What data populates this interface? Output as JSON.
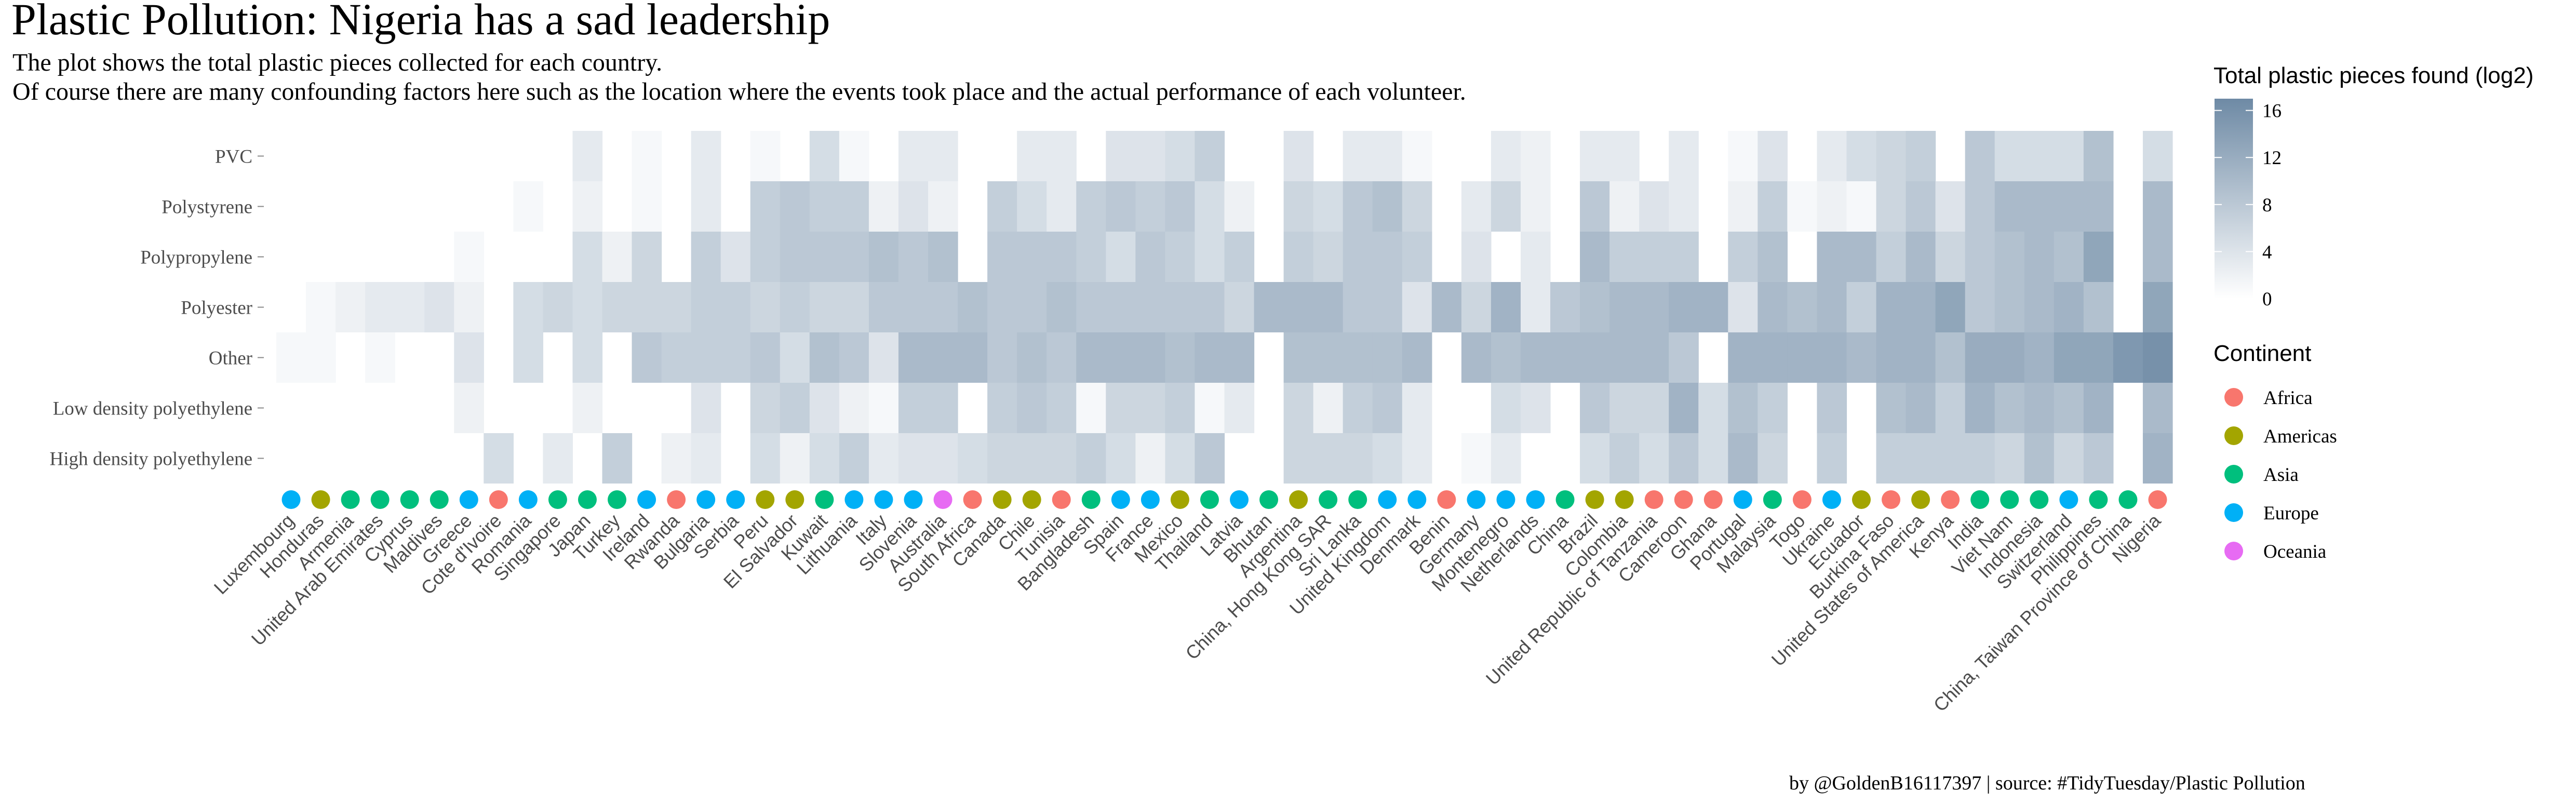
{
  "chart_data": {
    "type": "heatmap",
    "title": "Plastic Pollution: Nigeria has a sad leadership",
    "subtitle_line1": "The plot shows the total plastic pieces collected for each country.",
    "subtitle_line2": "Of course there are many confounding factors here such as the location where the events took place and the actual performance of each volunteer.",
    "caption": "by @GoldenB16117397 | source: #TidyTuesday/Plastic Pollution",
    "color_legend": {
      "title": "Total plastic pieces found (log2)",
      "ticks": [
        0,
        4,
        8,
        12,
        16
      ],
      "domain": [
        0,
        17
      ],
      "color_low": "#ffffff",
      "color_high": "#6e8aa5"
    },
    "continent_legend": {
      "title": "Continent",
      "items": [
        {
          "name": "Africa",
          "color": "#F8766D"
        },
        {
          "name": "Americas",
          "color": "#A3A500"
        },
        {
          "name": "Asia",
          "color": "#00BF7D"
        },
        {
          "name": "Europe",
          "color": "#00B0F6"
        },
        {
          "name": "Oceania",
          "color": "#E76BF3"
        }
      ]
    },
    "rows": [
      "PVC",
      "Polystyrene",
      "Polypropylene",
      "Polyester",
      "Other",
      "Low density polyethylene",
      "High density polyethylene"
    ],
    "countries": [
      {
        "name": "Luxembourg",
        "continent": "Europe",
        "values": [
          0,
          0,
          0,
          0,
          1,
          0,
          0
        ]
      },
      {
        "name": "Honduras",
        "continent": "Americas",
        "values": [
          0,
          0,
          0,
          1,
          1,
          0,
          0
        ]
      },
      {
        "name": "Armenia",
        "continent": "Asia",
        "values": [
          0,
          0,
          0,
          2,
          0,
          0,
          0
        ]
      },
      {
        "name": "United Arab Emirates",
        "continent": "Asia",
        "values": [
          0,
          0,
          0,
          3,
          1,
          0,
          0
        ]
      },
      {
        "name": "Cyprus",
        "continent": "Asia",
        "values": [
          0,
          0,
          0,
          3,
          0,
          0,
          0
        ]
      },
      {
        "name": "Maldives",
        "continent": "Asia",
        "values": [
          0,
          0,
          0,
          4,
          0,
          0,
          0
        ]
      },
      {
        "name": "Greece",
        "continent": "Europe",
        "values": [
          0,
          0,
          1,
          2,
          4,
          2,
          0
        ]
      },
      {
        "name": "Cote d'Ivoire",
        "continent": "Africa",
        "values": [
          0,
          0,
          0,
          0,
          0,
          0,
          5
        ]
      },
      {
        "name": "Romania",
        "continent": "Europe",
        "values": [
          0,
          1,
          0,
          5,
          5,
          0,
          0
        ]
      },
      {
        "name": "Singapore",
        "continent": "Asia",
        "values": [
          0,
          0,
          0,
          6,
          0,
          0,
          3
        ]
      },
      {
        "name": "Japan",
        "continent": "Asia",
        "values": [
          3,
          2,
          5,
          5,
          5,
          2,
          0
        ]
      },
      {
        "name": "Turkey",
        "continent": "Asia",
        "values": [
          0,
          0,
          2,
          6,
          0,
          0,
          7
        ]
      },
      {
        "name": "Ireland",
        "continent": "Europe",
        "values": [
          1,
          1,
          6,
          6,
          8,
          0,
          0
        ]
      },
      {
        "name": "Rwanda",
        "continent": "Africa",
        "values": [
          0,
          0,
          0,
          6,
          7,
          0,
          2
        ]
      },
      {
        "name": "Bulgaria",
        "continent": "Europe",
        "values": [
          3,
          3,
          7,
          7,
          7,
          4,
          3
        ]
      },
      {
        "name": "Serbia",
        "continent": "Europe",
        "values": [
          0,
          0,
          4,
          7,
          7,
          0,
          0
        ]
      },
      {
        "name": "Peru",
        "continent": "Americas",
        "values": [
          1,
          7,
          7,
          6,
          8,
          6,
          5
        ]
      },
      {
        "name": "El Salvador",
        "continent": "Americas",
        "values": [
          0,
          8,
          8,
          7,
          5,
          7,
          2
        ]
      },
      {
        "name": "Kuwait",
        "continent": "Asia",
        "values": [
          5,
          7,
          8,
          6,
          9,
          4,
          5
        ]
      },
      {
        "name": "Lithuania",
        "continent": "Europe",
        "values": [
          1,
          7,
          8,
          6,
          8,
          2,
          7
        ]
      },
      {
        "name": "Italy",
        "continent": "Europe",
        "values": [
          0,
          2,
          9,
          8,
          4,
          1,
          3
        ]
      },
      {
        "name": "Slovenia",
        "continent": "Europe",
        "values": [
          3,
          4,
          8,
          8,
          10,
          7,
          4
        ]
      },
      {
        "name": "Australia",
        "continent": "Oceania",
        "values": [
          3,
          2,
          9,
          8,
          10,
          7,
          4
        ]
      },
      {
        "name": "South Africa",
        "continent": "Africa",
        "values": [
          0,
          0,
          0,
          9,
          10,
          0,
          5
        ]
      },
      {
        "name": "Canada",
        "continent": "Americas",
        "values": [
          0,
          7,
          8,
          8,
          8,
          7,
          6
        ]
      },
      {
        "name": "Chile",
        "continent": "Americas",
        "values": [
          3,
          5,
          8,
          8,
          9,
          8,
          6
        ]
      },
      {
        "name": "Tunisia",
        "continent": "Africa",
        "values": [
          3,
          3,
          8,
          9,
          8,
          7,
          6
        ]
      },
      {
        "name": "Bangladesh",
        "continent": "Asia",
        "values": [
          0,
          7,
          7,
          8,
          10,
          1,
          7
        ]
      },
      {
        "name": "Spain",
        "continent": "Europe",
        "values": [
          4,
          8,
          5,
          8,
          10,
          6,
          5
        ]
      },
      {
        "name": "France",
        "continent": "Europe",
        "values": [
          4,
          7,
          8,
          8,
          10,
          6,
          2
        ]
      },
      {
        "name": "Mexico",
        "continent": "Americas",
        "values": [
          5,
          8,
          7,
          8,
          9,
          7,
          5
        ]
      },
      {
        "name": "Thailand",
        "continent": "Asia",
        "values": [
          7,
          5,
          5,
          8,
          10,
          1,
          8
        ]
      },
      {
        "name": "Latvia",
        "continent": "Europe",
        "values": [
          0,
          2,
          7,
          6,
          10,
          3,
          0
        ]
      },
      {
        "name": "Bhutan",
        "continent": "Asia",
        "values": [
          0,
          0,
          0,
          10,
          0,
          0,
          0
        ]
      },
      {
        "name": "Argentina",
        "continent": "Americas",
        "values": [
          4,
          6,
          7,
          10,
          9,
          6,
          6
        ]
      },
      {
        "name": "China, Hong Kong SAR",
        "continent": "Asia",
        "values": [
          0,
          5,
          6,
          10,
          9,
          2,
          6
        ]
      },
      {
        "name": "Sri Lanka",
        "continent": "Asia",
        "values": [
          3,
          8,
          8,
          8,
          9,
          7,
          6
        ]
      },
      {
        "name": "United Kingdom",
        "continent": "Europe",
        "values": [
          3,
          9,
          8,
          8,
          9,
          8,
          5
        ]
      },
      {
        "name": "Denmark",
        "continent": "Europe",
        "values": [
          1,
          6,
          7,
          4,
          10,
          3,
          3
        ]
      },
      {
        "name": "Benin",
        "continent": "Africa",
        "values": [
          0,
          0,
          0,
          10,
          0,
          0,
          0
        ]
      },
      {
        "name": "Germany",
        "continent": "Europe",
        "values": [
          0,
          3,
          4,
          6,
          10,
          0,
          1
        ]
      },
      {
        "name": "Montenegro",
        "continent": "Europe",
        "values": [
          3,
          6,
          0,
          11,
          9,
          5,
          3
        ]
      },
      {
        "name": "Netherlands",
        "continent": "Europe",
        "values": [
          2,
          2,
          3,
          3,
          10,
          4,
          0
        ]
      },
      {
        "name": "China",
        "continent": "Asia",
        "values": [
          0,
          0,
          0,
          8,
          10,
          0,
          0
        ]
      },
      {
        "name": "Brazil",
        "continent": "Americas",
        "values": [
          3,
          8,
          10,
          9,
          10,
          8,
          5
        ]
      },
      {
        "name": "Colombia",
        "continent": "Americas",
        "values": [
          3,
          2,
          7,
          10,
          10,
          6,
          7
        ]
      },
      {
        "name": "United Republic of Tanzania",
        "continent": "Africa",
        "values": [
          0,
          4,
          7,
          10,
          10,
          6,
          5
        ]
      },
      {
        "name": "Cameroon",
        "continent": "Africa",
        "values": [
          3,
          3,
          7,
          11,
          8,
          11,
          8
        ]
      },
      {
        "name": "Ghana",
        "continent": "Africa",
        "values": [
          0,
          0,
          0,
          11,
          0,
          5,
          5
        ]
      },
      {
        "name": "Portugal",
        "continent": "Europe",
        "values": [
          1,
          2,
          7,
          4,
          11,
          9,
          10
        ]
      },
      {
        "name": "Malaysia",
        "continent": "Asia",
        "values": [
          4,
          7,
          9,
          10,
          11,
          7,
          6
        ]
      },
      {
        "name": "Togo",
        "continent": "Africa",
        "values": [
          0,
          1,
          0,
          9,
          11,
          0,
          0
        ]
      },
      {
        "name": "Ukraine",
        "continent": "Europe",
        "values": [
          3,
          2,
          10,
          10,
          11,
          8,
          7
        ]
      },
      {
        "name": "Ecuador",
        "continent": "Americas",
        "values": [
          5,
          1,
          10,
          7,
          10,
          0,
          0
        ]
      },
      {
        "name": "Burkina Faso",
        "continent": "Africa",
        "values": [
          6,
          6,
          7,
          11,
          11,
          9,
          7
        ]
      },
      {
        "name": "United States of America",
        "continent": "Americas",
        "values": [
          7,
          8,
          10,
          11,
          11,
          10,
          7
        ]
      },
      {
        "name": "Kenya",
        "continent": "Africa",
        "values": [
          0,
          4,
          6,
          13,
          9,
          7,
          7
        ]
      },
      {
        "name": "India",
        "continent": "Asia",
        "values": [
          8,
          8,
          8,
          8,
          12,
          11,
          7
        ]
      },
      {
        "name": "Viet Nam",
        "continent": "Asia",
        "values": [
          5,
          10,
          9,
          9,
          12,
          9,
          6
        ]
      },
      {
        "name": "Indonesia",
        "continent": "Asia",
        "values": [
          5,
          10,
          10,
          10,
          11,
          10,
          9
        ]
      },
      {
        "name": "Switzerland",
        "continent": "Europe",
        "values": [
          5,
          10,
          9,
          11,
          13,
          9,
          6
        ]
      },
      {
        "name": "Philippines",
        "continent": "Asia",
        "values": [
          9,
          10,
          13,
          9,
          13,
          11,
          8
        ]
      },
      {
        "name": "China, Taiwan Province of China",
        "continent": "Asia",
        "values": [
          0,
          0,
          0,
          0,
          15,
          0,
          0
        ]
      },
      {
        "name": "Nigeria",
        "continent": "Africa",
        "values": [
          5,
          10,
          10,
          13,
          16,
          10,
          11
        ]
      }
    ]
  }
}
